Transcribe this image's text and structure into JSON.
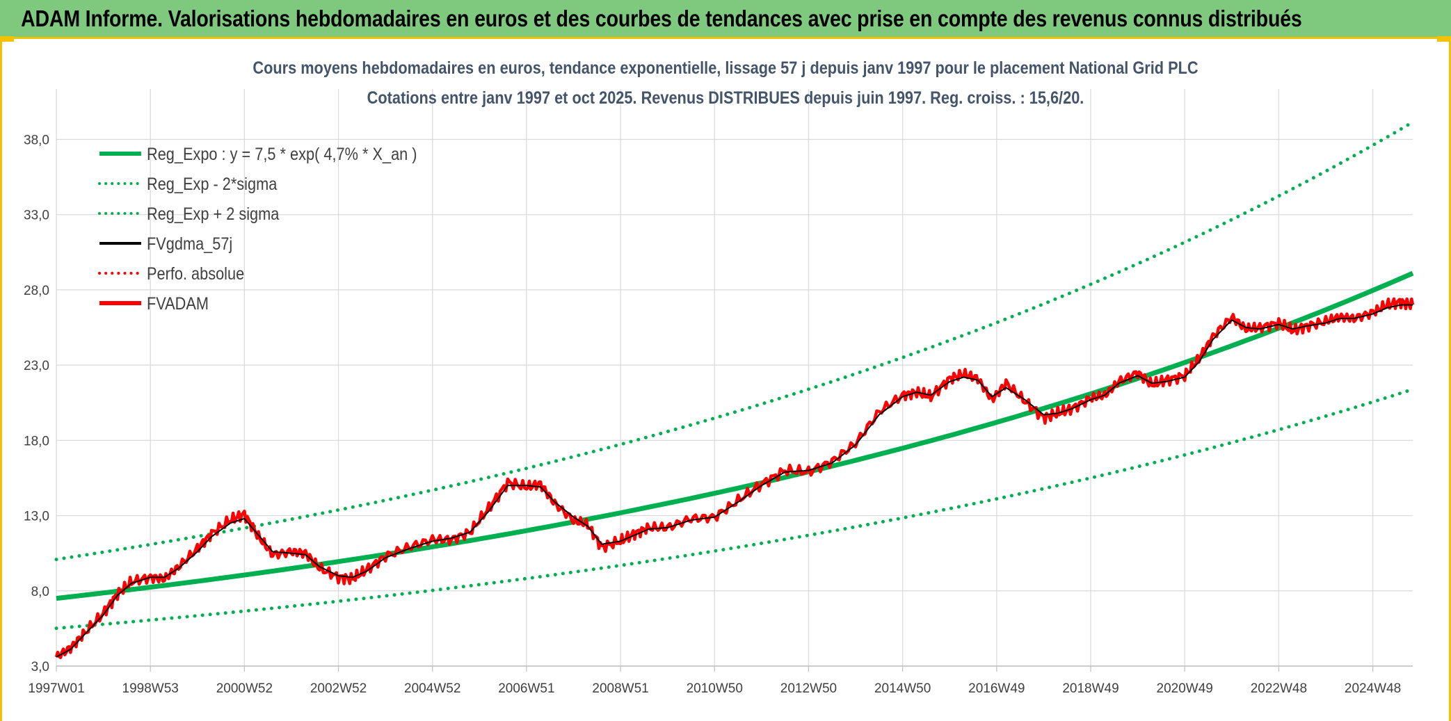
{
  "page": {
    "header_title": "ADAM Informe. Valorisations hebdomadaires en euros et des courbes de tendances avec prise en compte des revenus connus distribués"
  },
  "chart_data": {
    "type": "line",
    "title_line1": "Cours moyens hebdomadaires en euros, tendance exponentielle, lissage 57 j depuis janv 1997 pour le placement National Grid PLC",
    "title_line2": "Cotations entre janv 1997 et oct 2025. Revenus DISTRIBUES depuis juin 1997. Reg. croiss. : 15,6/20.",
    "x_tick_labels": [
      "1997W01",
      "1998W53",
      "2000W52",
      "2002W52",
      "2004W52",
      "2006W51",
      "2008W51",
      "2010W50",
      "2012W50",
      "2014W50",
      "2016W49",
      "2018W49",
      "2020W49",
      "2022W48",
      "2024W48"
    ],
    "x_tick_years": [
      1997.0,
      1999.0,
      2001.0,
      2003.0,
      2005.0,
      2007.0,
      2009.0,
      2011.0,
      2013.0,
      2015.0,
      2017.0,
      2019.0,
      2021.0,
      2023.0,
      2025.0
    ],
    "xlim": [
      1997.0,
      2025.85
    ],
    "y_tick_labels": [
      "3,0",
      "8,0",
      "13,0",
      "18,0",
      "23,0",
      "28,0",
      "33,0",
      "38,0"
    ],
    "y_ticks": [
      3,
      8,
      13,
      18,
      23,
      28,
      33,
      38
    ],
    "ylim": [
      3,
      39.5
    ],
    "colors": {
      "trend": "#00b050",
      "smoothed": "#000000",
      "price": "#ff0000",
      "grid": "#d9d9d9",
      "title": "#44546a"
    },
    "legend": [
      {
        "label": "Reg_Expo : y = 7,5 * exp( 4,7% *  X_an )",
        "color": "#00b050",
        "style": "solid-thick"
      },
      {
        "label": "Reg_Exp - 2*sigma",
        "color": "#00b050",
        "style": "dotted"
      },
      {
        "label": "Reg_Exp + 2 sigma",
        "color": "#00b050",
        "style": "dotted"
      },
      {
        "label": "FVgdma_57j",
        "color": "#000000",
        "style": "solid"
      },
      {
        "label": "Perfo. absolue",
        "color": "#ff0000",
        "style": "dotted"
      },
      {
        "label": "FVADAM",
        "color": "#ff0000",
        "style": "solid-thick"
      }
    ],
    "trend": {
      "a": 7.5,
      "rate": 0.047,
      "lower_factor": 0.735,
      "upper_factor": 1.345
    },
    "series": [
      {
        "name": "FVADAM",
        "x": [
          1997.0,
          1997.3,
          1997.6,
          1998.0,
          1998.3,
          1998.6,
          1999.0,
          1999.3,
          1999.6,
          2000.0,
          2000.3,
          2000.7,
          2001.0,
          2001.3,
          2001.6,
          2002.0,
          2002.3,
          2002.6,
          2003.0,
          2003.3,
          2003.6,
          2004.0,
          2004.5,
          2005.0,
          2005.4,
          2005.8,
          2006.2,
          2006.6,
          2007.0,
          2007.3,
          2007.6,
          2008.0,
          2008.3,
          2008.6,
          2009.0,
          2009.3,
          2009.6,
          2010.0,
          2010.5,
          2011.0,
          2011.5,
          2012.0,
          2012.5,
          2013.0,
          2013.5,
          2014.0,
          2014.5,
          2015.0,
          2015.3,
          2015.6,
          2016.0,
          2016.3,
          2016.6,
          2016.9,
          2017.2,
          2017.6,
          2018.0,
          2018.3,
          2018.6,
          2019.0,
          2019.3,
          2019.6,
          2020.0,
          2020.3,
          2020.6,
          2021.0,
          2021.3,
          2021.6,
          2022.0,
          2022.3,
          2022.6,
          2023.0,
          2023.3,
          2023.6,
          2024.0,
          2024.3,
          2024.6,
          2025.0,
          2025.3,
          2025.6,
          2025.85
        ],
        "y": [
          3.6,
          4.2,
          5.2,
          6.5,
          7.8,
          8.6,
          8.9,
          8.8,
          9.6,
          10.8,
          11.8,
          12.7,
          13.1,
          11.6,
          10.4,
          10.6,
          10.5,
          9.5,
          8.9,
          8.8,
          9.4,
          10.3,
          10.9,
          11.4,
          11.4,
          11.9,
          13.5,
          15.2,
          14.9,
          15.1,
          13.8,
          12.7,
          12.4,
          10.9,
          11.3,
          11.8,
          12.2,
          12.2,
          12.8,
          12.9,
          14.0,
          15.1,
          16.0,
          15.9,
          16.6,
          17.8,
          19.9,
          21.0,
          21.2,
          20.9,
          22.1,
          22.4,
          22.1,
          20.7,
          21.8,
          20.6,
          19.5,
          19.8,
          20.1,
          20.8,
          21.0,
          21.9,
          22.5,
          21.7,
          22.0,
          22.3,
          23.4,
          24.9,
          26.2,
          25.4,
          25.5,
          25.8,
          25.3,
          25.6,
          25.9,
          26.2,
          26.1,
          26.5,
          27.0,
          27.2,
          27.0
        ]
      },
      {
        "name": "FVgdma_57j",
        "x": [
          1997.0,
          1997.3,
          1997.6,
          1998.0,
          1998.3,
          1998.6,
          1999.0,
          1999.3,
          1999.6,
          2000.0,
          2000.3,
          2000.7,
          2001.0,
          2001.3,
          2001.6,
          2002.0,
          2002.3,
          2002.6,
          2003.0,
          2003.3,
          2003.6,
          2004.0,
          2004.5,
          2005.0,
          2005.4,
          2005.8,
          2006.2,
          2006.6,
          2007.0,
          2007.3,
          2007.6,
          2008.0,
          2008.3,
          2008.6,
          2009.0,
          2009.3,
          2009.6,
          2010.0,
          2010.5,
          2011.0,
          2011.5,
          2012.0,
          2012.5,
          2013.0,
          2013.5,
          2014.0,
          2014.5,
          2015.0,
          2015.3,
          2015.6,
          2016.0,
          2016.3,
          2016.6,
          2016.9,
          2017.2,
          2017.6,
          2018.0,
          2018.3,
          2018.6,
          2019.0,
          2019.3,
          2019.6,
          2020.0,
          2020.3,
          2020.6,
          2021.0,
          2021.3,
          2021.6,
          2022.0,
          2022.3,
          2022.6,
          2023.0,
          2023.3,
          2023.6,
          2024.0,
          2024.3,
          2024.6,
          2025.0,
          2025.3,
          2025.6,
          2025.85
        ],
        "y": [
          3.6,
          4.1,
          5.1,
          6.4,
          7.7,
          8.5,
          8.9,
          8.9,
          9.5,
          10.6,
          11.6,
          12.5,
          12.8,
          11.7,
          10.6,
          10.5,
          10.4,
          9.6,
          9.0,
          8.9,
          9.3,
          10.2,
          10.8,
          11.3,
          11.5,
          11.9,
          13.3,
          15.0,
          15.0,
          14.9,
          13.9,
          12.9,
          12.3,
          11.1,
          11.3,
          11.7,
          12.1,
          12.2,
          12.7,
          12.9,
          13.9,
          15.0,
          15.9,
          16.0,
          16.5,
          17.7,
          19.7,
          20.9,
          21.2,
          21.0,
          21.9,
          22.2,
          22.0,
          20.9,
          21.5,
          20.7,
          19.7,
          19.8,
          20.1,
          20.7,
          21.0,
          21.8,
          22.3,
          21.8,
          21.9,
          22.2,
          23.2,
          24.7,
          26.0,
          25.5,
          25.4,
          25.7,
          25.4,
          25.6,
          25.8,
          26.1,
          26.1,
          26.4,
          26.8,
          27.0,
          27.0
        ]
      }
    ]
  }
}
